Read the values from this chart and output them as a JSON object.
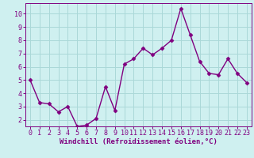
{
  "x": [
    0,
    1,
    2,
    3,
    4,
    5,
    6,
    7,
    8,
    9,
    10,
    11,
    12,
    13,
    14,
    15,
    16,
    17,
    18,
    19,
    20,
    21,
    22,
    23
  ],
  "y": [
    5.0,
    3.3,
    3.2,
    2.6,
    3.0,
    1.5,
    1.6,
    2.1,
    4.5,
    2.7,
    6.2,
    6.6,
    7.4,
    6.9,
    7.4,
    8.0,
    10.4,
    8.4,
    6.4,
    5.5,
    5.4,
    6.6,
    5.5,
    4.8
  ],
  "line_color": "#800080",
  "marker": "D",
  "marker_size": 2.5,
  "bg_color": "#cff0f0",
  "grid_color": "#aad8d8",
  "xlabel": "Windchill (Refroidissement éolien,°C)",
  "ylabel": "",
  "xlim_min": -0.5,
  "xlim_max": 23.5,
  "ylim_min": 1.5,
  "ylim_max": 10.8,
  "yticks": [
    2,
    3,
    4,
    5,
    6,
    7,
    8,
    9,
    10
  ],
  "xticks": [
    0,
    1,
    2,
    3,
    4,
    5,
    6,
    7,
    8,
    9,
    10,
    11,
    12,
    13,
    14,
    15,
    16,
    17,
    18,
    19,
    20,
    21,
    22,
    23
  ],
  "axis_color": "#800080",
  "tick_color": "#800080",
  "label_fontsize": 6.5,
  "tick_fontsize": 6.0,
  "linewidth": 1.0
}
